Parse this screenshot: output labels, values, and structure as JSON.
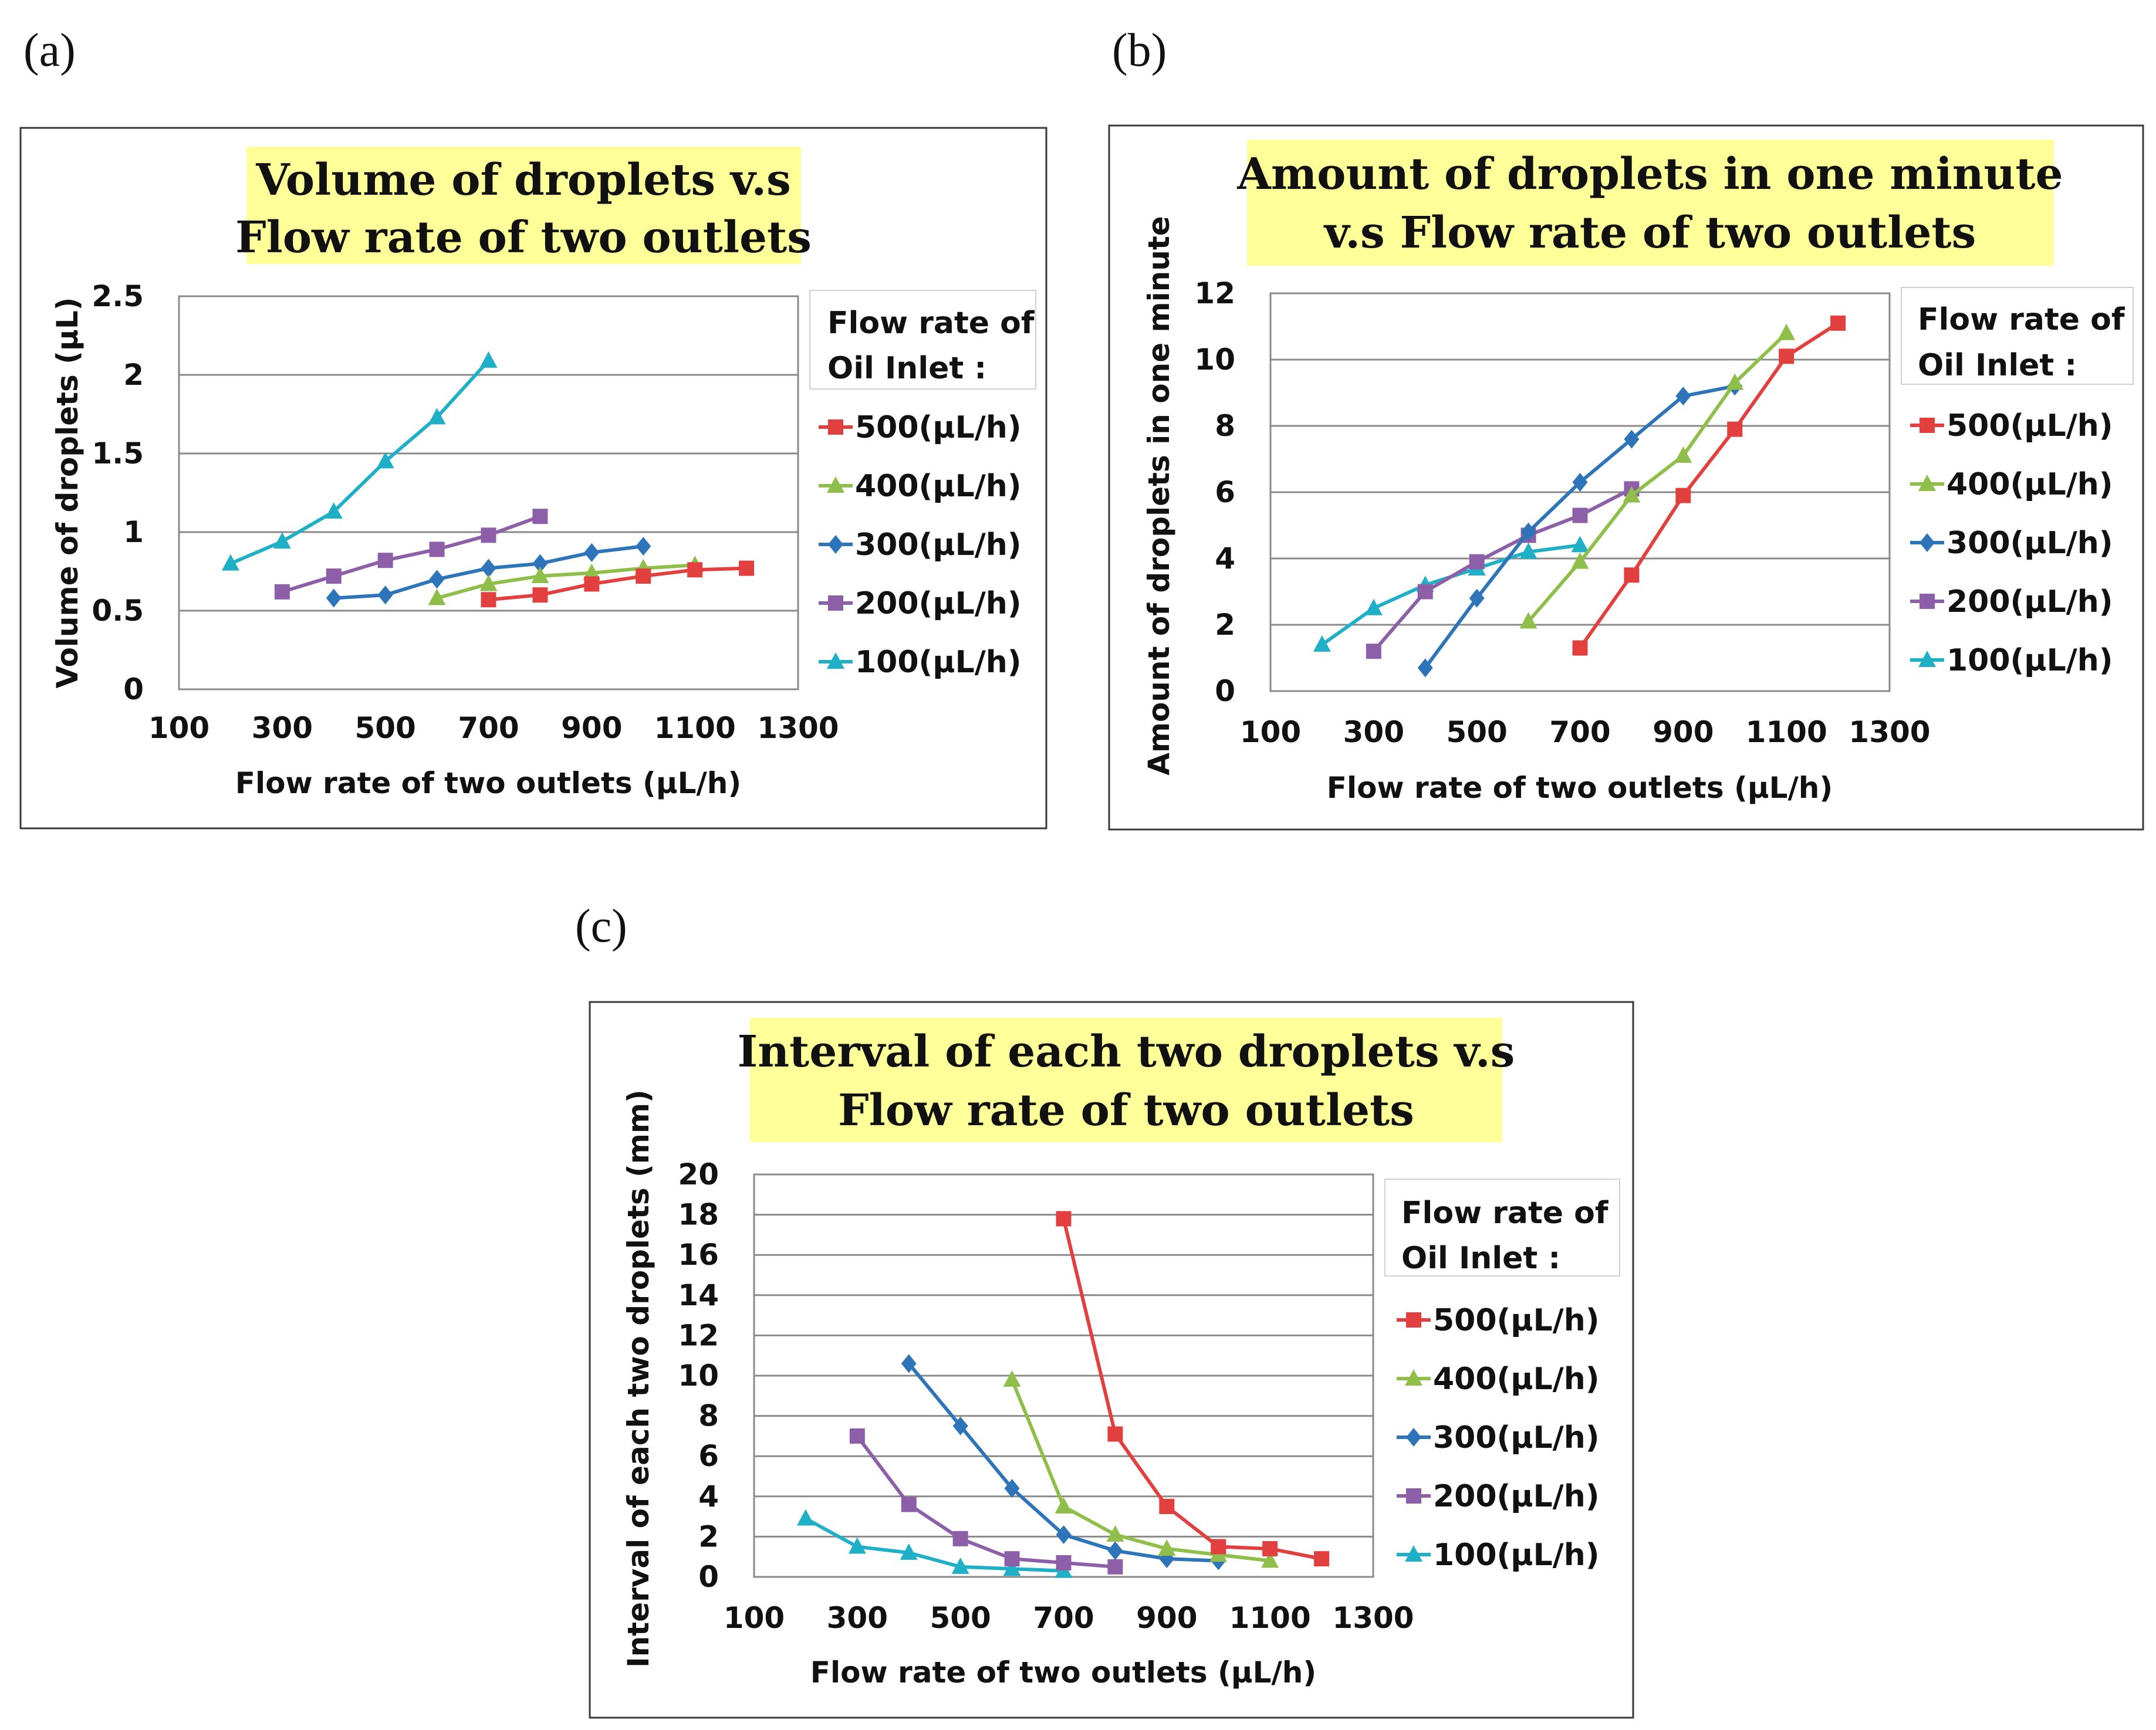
{
  "figure_labels": [
    "(a)",
    "(b)",
    "(c)"
  ],
  "legend": {
    "title_line1": "Flow rate of",
    "title_line2": "Oil Inlet :"
  },
  "series_styles": [
    {
      "name": "500(μL/h)",
      "color": "#e2403f",
      "marker": "square"
    },
    {
      "name": "400(μL/h)",
      "color": "#8fbf4a",
      "marker": "triangle"
    },
    {
      "name": "300(μL/h)",
      "color": "#2d74b8",
      "marker": "diamond"
    },
    {
      "name": "200(μL/h)",
      "color": "#8c5fa8",
      "marker": "square"
    },
    {
      "name": "100(μL/h)",
      "color": "#1fb0c8",
      "marker": "triangle"
    }
  ],
  "chart_data": [
    {
      "type": "line",
      "panel": "(a)",
      "title_lines": [
        "Volume of droplets  v.s",
        "Flow rate of two outlets"
      ],
      "xlabel": "Flow rate of two outlets (μL/h)",
      "ylabel": "Volume of droplets (μL)",
      "xlim": [
        100,
        1300
      ],
      "xticks": [
        100,
        300,
        500,
        700,
        900,
        1100,
        1300
      ],
      "ylim": [
        0,
        2.5
      ],
      "yticks": [
        "0",
        "0.5",
        "1",
        "1.5",
        "2",
        "2.5"
      ],
      "series": [
        {
          "name": "500(μL/h)",
          "x": [
            700,
            800,
            900,
            1000,
            1100,
            1200
          ],
          "y": [
            0.57,
            0.6,
            0.67,
            0.72,
            0.76,
            0.77
          ]
        },
        {
          "name": "400(μL/h)",
          "x": [
            600,
            700,
            800,
            900,
            1000,
            1100
          ],
          "y": [
            0.58,
            0.67,
            0.72,
            0.74,
            0.77,
            0.79
          ]
        },
        {
          "name": "300(μL/h)",
          "x": [
            400,
            500,
            600,
            700,
            800,
            900,
            1000
          ],
          "y": [
            0.58,
            0.6,
            0.7,
            0.77,
            0.8,
            0.87,
            0.91
          ]
        },
        {
          "name": "200(μL/h)",
          "x": [
            300,
            400,
            500,
            600,
            700,
            800
          ],
          "y": [
            0.62,
            0.72,
            0.82,
            0.89,
            0.98,
            1.1
          ]
        },
        {
          "name": "100(μL/h)",
          "x": [
            200,
            300,
            400,
            500,
            600,
            700
          ],
          "y": [
            0.8,
            0.94,
            1.13,
            1.45,
            1.73,
            2.09
          ]
        }
      ]
    },
    {
      "type": "line",
      "panel": "(b)",
      "title_lines": [
        "Amount of droplets in one minute",
        "v.s Flow rate of two outlets"
      ],
      "xlabel": "Flow rate of two outlets (μL/h)",
      "ylabel": "Amount of droplets in one minute",
      "xlim": [
        100,
        1300
      ],
      "xticks": [
        100,
        300,
        500,
        700,
        900,
        1100,
        1300
      ],
      "ylim": [
        0,
        12
      ],
      "yticks": [
        "0",
        "2",
        "4",
        "6",
        "8",
        "10",
        "12"
      ],
      "series": [
        {
          "name": "500(μL/h)",
          "x": [
            700,
            800,
            900,
            1000,
            1100,
            1200
          ],
          "y": [
            1.3,
            3.5,
            5.9,
            7.9,
            10.1,
            11.1
          ]
        },
        {
          "name": "400(μL/h)",
          "x": [
            600,
            700,
            800,
            900,
            1000,
            1100
          ],
          "y": [
            2.1,
            3.9,
            5.9,
            7.1,
            9.3,
            10.8
          ]
        },
        {
          "name": "300(μL/h)",
          "x": [
            400,
            500,
            600,
            700,
            800,
            900,
            1000
          ],
          "y": [
            0.7,
            2.8,
            4.8,
            6.3,
            7.6,
            8.9,
            9.2
          ]
        },
        {
          "name": "200(μL/h)",
          "x": [
            300,
            400,
            500,
            600,
            700,
            800
          ],
          "y": [
            1.2,
            3.0,
            3.9,
            4.7,
            5.3,
            6.1
          ]
        },
        {
          "name": "100(μL/h)",
          "x": [
            200,
            300,
            400,
            500,
            600,
            700
          ],
          "y": [
            1.4,
            2.5,
            3.2,
            3.7,
            4.2,
            4.4
          ]
        }
      ]
    },
    {
      "type": "line",
      "panel": "(c)",
      "title_lines": [
        "Interval of each two droplets v.s",
        "Flow rate of two outlets"
      ],
      "xlabel": "Flow rate of two outlets  (μL/h)",
      "ylabel": "Interval of each two droplets (mm)",
      "xlim": [
        100,
        1300
      ],
      "xticks": [
        100,
        300,
        500,
        700,
        900,
        1100,
        1300
      ],
      "ylim": [
        0,
        20
      ],
      "yticks": [
        "0",
        "2",
        "4",
        "6",
        "8",
        "10",
        "12",
        "14",
        "16",
        "18",
        "20"
      ],
      "series": [
        {
          "name": "500(μL/h)",
          "x": [
            700,
            800,
            900,
            1000,
            1100,
            1200
          ],
          "y": [
            17.8,
            7.1,
            3.5,
            1.5,
            1.4,
            0.9
          ]
        },
        {
          "name": "400(μL/h)",
          "x": [
            600,
            700,
            800,
            900,
            1000,
            1100
          ],
          "y": [
            9.8,
            3.5,
            2.1,
            1.4,
            1.1,
            0.8
          ]
        },
        {
          "name": "300(μL/h)",
          "x": [
            400,
            500,
            600,
            700,
            800,
            900,
            1000
          ],
          "y": [
            10.6,
            7.5,
            4.4,
            2.1,
            1.3,
            0.9,
            0.8
          ]
        },
        {
          "name": "200(μL/h)",
          "x": [
            300,
            400,
            500,
            600,
            700,
            800
          ],
          "y": [
            7.0,
            3.6,
            1.9,
            0.9,
            0.7,
            0.5
          ]
        },
        {
          "name": "100(μL/h)",
          "x": [
            200,
            300,
            400,
            500,
            600,
            700
          ],
          "y": [
            2.9,
            1.5,
            1.2,
            0.5,
            0.4,
            0.3
          ]
        }
      ]
    }
  ]
}
